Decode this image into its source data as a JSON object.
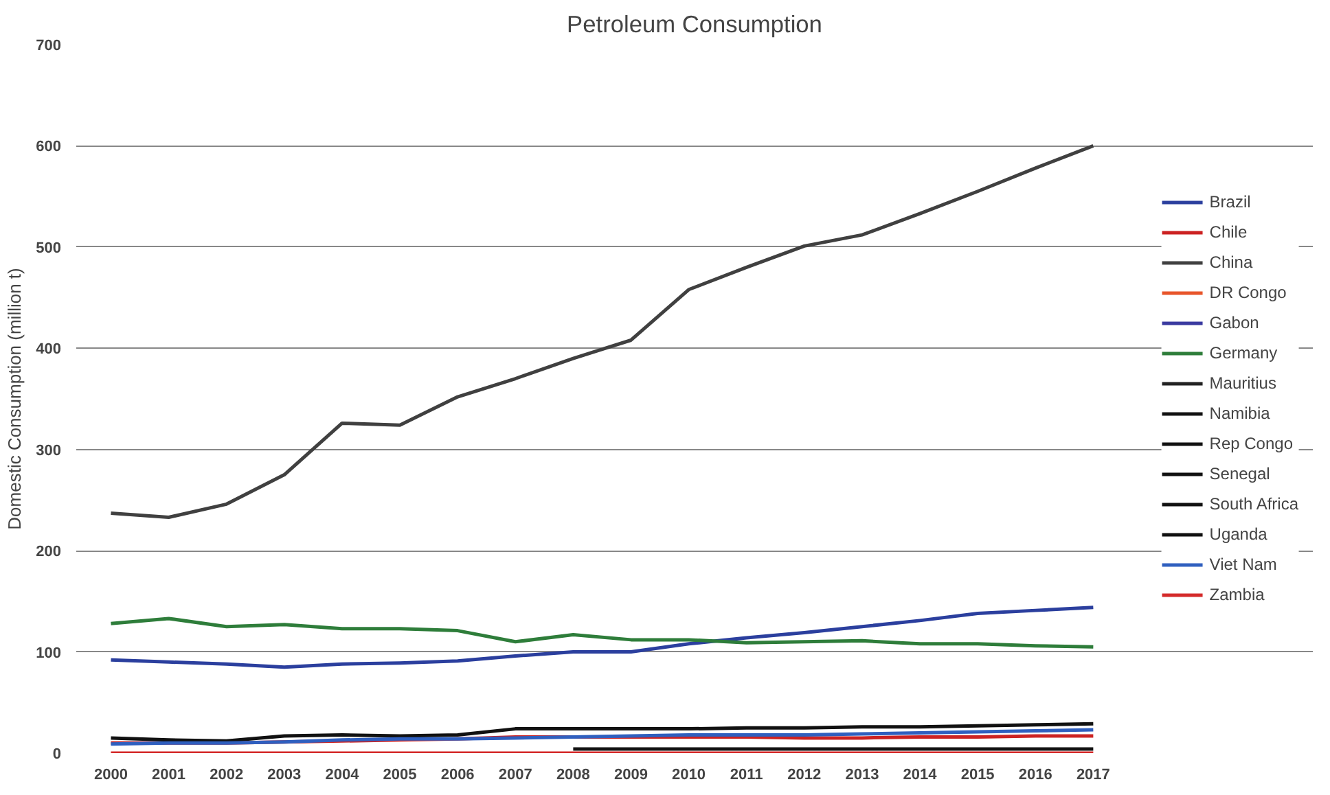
{
  "chart_data": {
    "type": "line",
    "title": "Petroleum Consumption",
    "ylabel": "Domestic Consumption (million t)",
    "categories": [
      "2000",
      "2001",
      "2002",
      "2003",
      "2004",
      "2005",
      "2006",
      "2007",
      "2008",
      "2009",
      "2010",
      "2011",
      "2012",
      "2013",
      "2014",
      "2015",
      "2016",
      "2017"
    ],
    "ylim": [
      0,
      700
    ],
    "yticks": [
      0,
      100,
      200,
      300,
      400,
      500,
      600,
      700
    ],
    "grid": "y",
    "legend": "right",
    "marker": "none",
    "line_style": "solid",
    "series": [
      {
        "name": "Brazil",
        "color": "#2b3f9e",
        "values": [
          92,
          90,
          88,
          85,
          88,
          89,
          91,
          96,
          100,
          100,
          108,
          114,
          119,
          125,
          131,
          138,
          141,
          144
        ]
      },
      {
        "name": "Chile",
        "color": "#cc2222",
        "values": [
          10,
          10,
          10,
          11,
          12,
          13,
          14,
          16,
          16,
          16,
          16,
          16,
          15,
          15,
          16,
          16,
          17,
          17
        ]
      },
      {
        "name": "China",
        "color": "#404040",
        "values": [
          237,
          233,
          246,
          275,
          326,
          324,
          352,
          370,
          390,
          408,
          458,
          480,
          501,
          512,
          533,
          555,
          578,
          600
        ]
      },
      {
        "name": "DR Congo",
        "color": "#e8552a",
        "values": [
          null,
          null,
          null,
          null,
          null,
          null,
          null,
          null,
          null,
          null,
          null,
          null,
          null,
          null,
          null,
          null,
          null,
          null
        ]
      },
      {
        "name": "Gabon",
        "color": "#3a3aa0",
        "values": [
          null,
          null,
          null,
          null,
          null,
          null,
          null,
          null,
          null,
          null,
          null,
          null,
          null,
          null,
          null,
          null,
          null,
          null
        ]
      },
      {
        "name": "Germany",
        "color": "#2e7d3a",
        "values": [
          128,
          133,
          125,
          127,
          123,
          123,
          121,
          110,
          117,
          112,
          112,
          109,
          110,
          111,
          108,
          108,
          106,
          105
        ]
      },
      {
        "name": "Mauritius",
        "color": "#222222",
        "values": [
          null,
          null,
          null,
          null,
          null,
          null,
          null,
          null,
          null,
          null,
          null,
          null,
          null,
          null,
          null,
          null,
          null,
          null
        ]
      },
      {
        "name": "Namibia",
        "color": "#111111",
        "values": [
          null,
          null,
          null,
          null,
          null,
          null,
          null,
          null,
          null,
          null,
          null,
          null,
          null,
          null,
          null,
          null,
          null,
          null
        ]
      },
      {
        "name": "Rep Congo",
        "color": "#111111",
        "values": [
          null,
          null,
          null,
          null,
          null,
          null,
          null,
          null,
          null,
          null,
          null,
          null,
          null,
          null,
          null,
          null,
          null,
          null
        ]
      },
      {
        "name": "Senegal",
        "color": "#111111",
        "values": [
          null,
          null,
          null,
          null,
          null,
          null,
          null,
          null,
          4,
          4,
          4,
          4,
          4,
          4,
          4,
          4,
          4,
          4
        ]
      },
      {
        "name": "South Africa",
        "color": "#111111",
        "values": [
          15,
          13,
          12,
          17,
          18,
          17,
          18,
          24,
          24,
          24,
          24,
          25,
          25,
          26,
          26,
          27,
          28,
          29
        ]
      },
      {
        "name": "Uganda",
        "color": "#111111",
        "values": [
          null,
          null,
          null,
          null,
          null,
          null,
          null,
          null,
          null,
          null,
          null,
          null,
          null,
          null,
          null,
          null,
          null,
          null
        ]
      },
      {
        "name": "Viet Nam",
        "color": "#2f5fbf",
        "values": [
          9,
          10,
          10,
          11,
          13,
          14,
          14,
          15,
          16,
          17,
          18,
          18,
          18,
          19,
          20,
          21,
          22,
          23
        ]
      },
      {
        "name": "Zambia",
        "color": "#d42a2a",
        "values": [
          0,
          0,
          0,
          0,
          0,
          0,
          0,
          0,
          0,
          0,
          0,
          0,
          0,
          0,
          0,
          0,
          0,
          0
        ]
      }
    ]
  }
}
